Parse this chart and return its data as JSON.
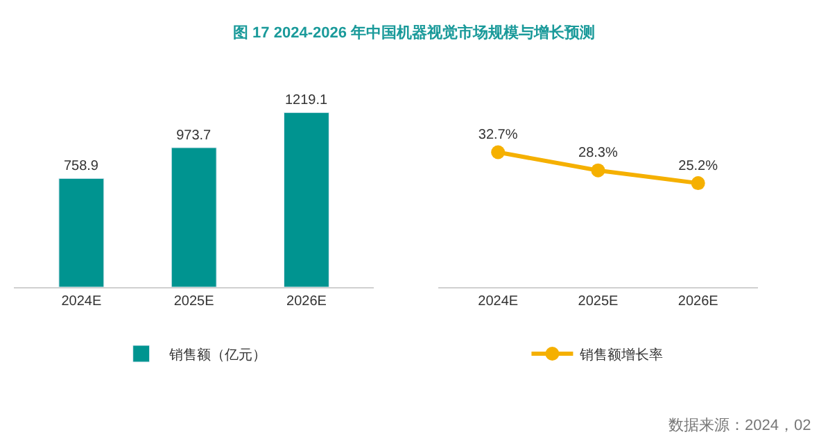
{
  "chart_data": [
    {
      "type": "bar",
      "title": "图 17 2024-2026 年中国机器视觉市场规模与增长预测",
      "categories": [
        "2024E",
        "2025E",
        "2026E"
      ],
      "series": [
        {
          "name": "销售额（亿元）",
          "color": "#009490",
          "values": [
            758.9,
            973.7,
            1219.1
          ]
        }
      ],
      "data_labels": true,
      "legend": "bottom",
      "tick_labels": "x"
    },
    {
      "type": "line",
      "categories": [
        "2024E",
        "2025E",
        "2026E"
      ],
      "series": [
        {
          "name": "销售额增长率",
          "color": "#f5b000",
          "values": [
            32.7,
            28.3,
            25.2
          ],
          "value_labels": [
            "32.7%",
            "28.3%",
            "25.2%"
          ]
        }
      ],
      "marker": "circle",
      "line_style": "solid",
      "legend": "bottom",
      "tick_labels": "x",
      "annotations": [
        "数据来源：2024，02"
      ]
    }
  ]
}
